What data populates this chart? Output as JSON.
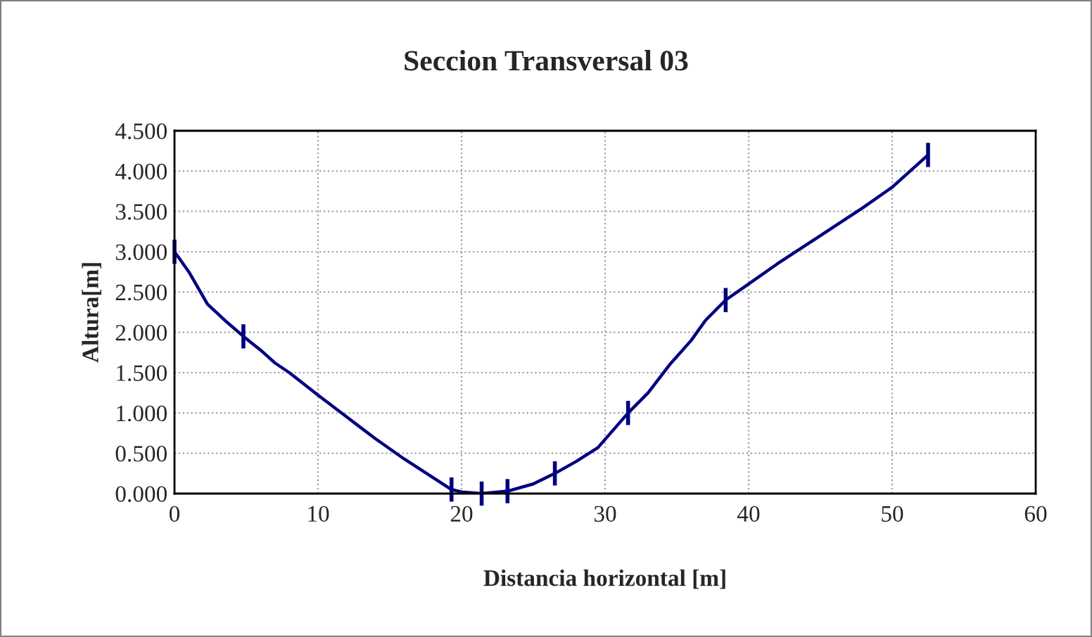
{
  "chart_data": {
    "type": "line",
    "title": "Seccion Transversal 03",
    "xlabel": "Distancia horizontal [m]",
    "ylabel": "Altura[m]",
    "series": [
      {
        "color": "#000080",
        "marker": "none",
        "line_style": "solid",
        "x": [
          0,
          1,
          2.3,
          3.5,
          4.8,
          6,
          7,
          8,
          10,
          12,
          14,
          16,
          18,
          19.3,
          20,
          21.4,
          23.2,
          25,
          26.5,
          28,
          29.5,
          31.6,
          33,
          34.5,
          36,
          37,
          38.4,
          40,
          42,
          45,
          48,
          50,
          52.5
        ],
        "values": [
          3.0,
          2.75,
          2.35,
          2.15,
          1.95,
          1.78,
          1.62,
          1.5,
          1.22,
          0.95,
          0.68,
          0.43,
          0.2,
          0.05,
          0.02,
          0.0,
          0.03,
          0.12,
          0.25,
          0.4,
          0.57,
          1.0,
          1.25,
          1.6,
          1.9,
          2.15,
          2.4,
          2.6,
          2.85,
          3.2,
          3.55,
          3.8,
          4.2
        ],
        "errors": [
          0.15,
          null,
          null,
          null,
          0.15,
          null,
          null,
          null,
          null,
          null,
          null,
          null,
          null,
          0.15,
          null,
          0.15,
          0.15,
          null,
          0.15,
          null,
          null,
          0.15,
          null,
          null,
          null,
          null,
          0.15,
          null,
          null,
          null,
          null,
          null,
          0.15
        ]
      }
    ],
    "xlim": [
      0,
      60
    ],
    "xticks": [
      0,
      10,
      20,
      30,
      40,
      50,
      60
    ],
    "ylim": [
      0,
      4.5
    ],
    "yticks": [
      {
        "value": 0,
        "label": "0.000"
      },
      {
        "value": 0.5,
        "label": "0.500"
      },
      {
        "value": 1,
        "label": "1.000"
      },
      {
        "value": 1.5,
        "label": "1.500"
      },
      {
        "value": 2,
        "label": "2.000"
      },
      {
        "value": 2.5,
        "label": "2.500"
      },
      {
        "value": 3,
        "label": "3.000"
      },
      {
        "value": 3.5,
        "label": "3.500"
      },
      {
        "value": 4,
        "label": "4.000"
      },
      {
        "value": 4.5,
        "label": "4.500"
      }
    ],
    "grid": true,
    "legend": false
  }
}
